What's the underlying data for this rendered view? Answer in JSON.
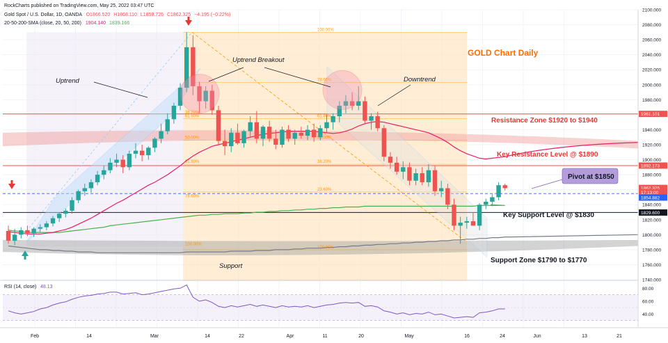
{
  "header": {
    "credit": "RockCharts published on TradingView.com, May 25, 2022 03:47 UTC",
    "symbol": "Gold Spot / U.S. Dollar, 1D, OANDA",
    "ohlc": {
      "o": "O1866.520",
      "h": "H1868.110",
      "l": "L1859.726",
      "c": "C1862.325",
      "chg": "−4.195 (−0.22%)"
    },
    "ma_label": "20-50-200-SMA (close, 20, 50, 200)",
    "ma_values": [
      "1904.140",
      "1839.166"
    ]
  },
  "colors": {
    "up": "#26a69a",
    "down": "#ef5350",
    "ma_fast": "#e91e63",
    "ma_slow": "#4caf50",
    "ma_long": "#787b86",
    "fib": "#ff9800",
    "channel": "#90caf9"
  },
  "chart_data": [
    {
      "type": "candlestick",
      "title": "GOLD Chart Daily",
      "ylim": [
        1740,
        2100
      ],
      "y_ticks": [
        "2100.000",
        "2080.000",
        "2060.000",
        "2040.000",
        "2020.000",
        "2000.000",
        "1980.000",
        "1960.000",
        "1940.000",
        "1920.000",
        "1900.000",
        "1880.000",
        "1860.000",
        "1840.000",
        "1820.000",
        "1800.000",
        "1780.000",
        "1760.000",
        "1740.000"
      ],
      "x_ticks": [
        "Feb",
        "14",
        "Mar",
        "14",
        "22",
        "Apr",
        "11",
        "20",
        "May",
        "16",
        "24",
        "Jun",
        "13",
        "21"
      ],
      "candles": [
        {
          "o": 1805,
          "h": 1812,
          "l": 1788,
          "c": 1792
        },
        {
          "o": 1792,
          "h": 1808,
          "l": 1786,
          "c": 1800
        },
        {
          "o": 1800,
          "h": 1810,
          "l": 1795,
          "c": 1806
        },
        {
          "o": 1806,
          "h": 1812,
          "l": 1798,
          "c": 1802
        },
        {
          "o": 1802,
          "h": 1810,
          "l": 1797,
          "c": 1808
        },
        {
          "o": 1808,
          "h": 1814,
          "l": 1803,
          "c": 1810
        },
        {
          "o": 1810,
          "h": 1818,
          "l": 1806,
          "c": 1815
        },
        {
          "o": 1815,
          "h": 1825,
          "l": 1811,
          "c": 1822
        },
        {
          "o": 1822,
          "h": 1830,
          "l": 1817,
          "c": 1828
        },
        {
          "o": 1828,
          "h": 1835,
          "l": 1823,
          "c": 1832
        },
        {
          "o": 1832,
          "h": 1850,
          "l": 1828,
          "c": 1846
        },
        {
          "o": 1846,
          "h": 1860,
          "l": 1842,
          "c": 1858
        },
        {
          "o": 1858,
          "h": 1868,
          "l": 1852,
          "c": 1862
        },
        {
          "o": 1862,
          "h": 1874,
          "l": 1856,
          "c": 1870
        },
        {
          "o": 1870,
          "h": 1885,
          "l": 1866,
          "c": 1880
        },
        {
          "o": 1880,
          "h": 1892,
          "l": 1874,
          "c": 1886
        },
        {
          "o": 1886,
          "h": 1902,
          "l": 1882,
          "c": 1896
        },
        {
          "o": 1896,
          "h": 1908,
          "l": 1890,
          "c": 1900
        },
        {
          "o": 1900,
          "h": 1906,
          "l": 1882,
          "c": 1890
        },
        {
          "o": 1890,
          "h": 1912,
          "l": 1886,
          "c": 1908
        },
        {
          "o": 1908,
          "h": 1922,
          "l": 1902,
          "c": 1912
        },
        {
          "o": 1912,
          "h": 1920,
          "l": 1898,
          "c": 1906
        },
        {
          "o": 1906,
          "h": 1918,
          "l": 1900,
          "c": 1916
        },
        {
          "o": 1916,
          "h": 1930,
          "l": 1910,
          "c": 1928
        },
        {
          "o": 1928,
          "h": 1948,
          "l": 1922,
          "c": 1938
        },
        {
          "o": 1938,
          "h": 1962,
          "l": 1934,
          "c": 1954
        },
        {
          "o": 1954,
          "h": 1976,
          "l": 1948,
          "c": 1972
        },
        {
          "o": 1972,
          "h": 2002,
          "l": 1966,
          "c": 1996
        },
        {
          "o": 1996,
          "h": 2070,
          "l": 1990,
          "c": 2050
        },
        {
          "o": 2050,
          "h": 2066,
          "l": 1986,
          "c": 1998
        },
        {
          "o": 1998,
          "h": 2004,
          "l": 1962,
          "c": 1978
        },
        {
          "o": 1978,
          "h": 1998,
          "l": 1968,
          "c": 1992
        },
        {
          "o": 1992,
          "h": 2000,
          "l": 1960,
          "c": 1966
        },
        {
          "o": 1966,
          "h": 1972,
          "l": 1920,
          "c": 1925
        },
        {
          "o": 1925,
          "h": 1940,
          "l": 1906,
          "c": 1918
        },
        {
          "o": 1918,
          "h": 1942,
          "l": 1910,
          "c": 1936
        },
        {
          "o": 1936,
          "h": 1948,
          "l": 1920,
          "c": 1922
        },
        {
          "o": 1922,
          "h": 1940,
          "l": 1916,
          "c": 1938
        },
        {
          "o": 1938,
          "h": 1958,
          "l": 1930,
          "c": 1950
        },
        {
          "o": 1950,
          "h": 1965,
          "l": 1922,
          "c": 1928
        },
        {
          "o": 1928,
          "h": 1946,
          "l": 1918,
          "c": 1944
        },
        {
          "o": 1944,
          "h": 1952,
          "l": 1924,
          "c": 1928
        },
        {
          "o": 1928,
          "h": 1940,
          "l": 1914,
          "c": 1920
        },
        {
          "o": 1920,
          "h": 1944,
          "l": 1916,
          "c": 1940
        },
        {
          "o": 1940,
          "h": 1946,
          "l": 1924,
          "c": 1928
        },
        {
          "o": 1928,
          "h": 1940,
          "l": 1920,
          "c": 1936
        },
        {
          "o": 1936,
          "h": 1944,
          "l": 1928,
          "c": 1932
        },
        {
          "o": 1932,
          "h": 1946,
          "l": 1926,
          "c": 1940
        },
        {
          "o": 1940,
          "h": 1948,
          "l": 1924,
          "c": 1930
        },
        {
          "o": 1930,
          "h": 1946,
          "l": 1926,
          "c": 1942
        },
        {
          "o": 1942,
          "h": 1960,
          "l": 1936,
          "c": 1950
        },
        {
          "o": 1950,
          "h": 1962,
          "l": 1940,
          "c": 1958
        },
        {
          "o": 1958,
          "h": 1978,
          "l": 1950,
          "c": 1972
        },
        {
          "o": 1972,
          "h": 1986,
          "l": 1962,
          "c": 1978
        },
        {
          "o": 1978,
          "h": 1990,
          "l": 1966,
          "c": 1972
        },
        {
          "o": 1972,
          "h": 1998,
          "l": 1966,
          "c": 1978
        },
        {
          "o": 1978,
          "h": 1984,
          "l": 1948,
          "c": 1952
        },
        {
          "o": 1952,
          "h": 1962,
          "l": 1940,
          "c": 1958
        },
        {
          "o": 1958,
          "h": 1964,
          "l": 1938,
          "c": 1942
        },
        {
          "o": 1942,
          "h": 1946,
          "l": 1898,
          "c": 1904
        },
        {
          "o": 1904,
          "h": 1910,
          "l": 1888,
          "c": 1896
        },
        {
          "o": 1896,
          "h": 1904,
          "l": 1880,
          "c": 1884
        },
        {
          "o": 1884,
          "h": 1898,
          "l": 1874,
          "c": 1890
        },
        {
          "o": 1890,
          "h": 1896,
          "l": 1866,
          "c": 1872
        },
        {
          "o": 1872,
          "h": 1888,
          "l": 1866,
          "c": 1882
        },
        {
          "o": 1882,
          "h": 1890,
          "l": 1866,
          "c": 1870
        },
        {
          "o": 1870,
          "h": 1894,
          "l": 1864,
          "c": 1886
        },
        {
          "o": 1886,
          "h": 1892,
          "l": 1852,
          "c": 1858
        },
        {
          "o": 1858,
          "h": 1872,
          "l": 1850,
          "c": 1862
        },
        {
          "o": 1862,
          "h": 1868,
          "l": 1834,
          "c": 1840
        },
        {
          "o": 1840,
          "h": 1848,
          "l": 1806,
          "c": 1812
        },
        {
          "o": 1812,
          "h": 1824,
          "l": 1788,
          "c": 1816
        },
        {
          "o": 1816,
          "h": 1824,
          "l": 1808,
          "c": 1818
        },
        {
          "o": 1818,
          "h": 1830,
          "l": 1814,
          "c": 1812
        },
        {
          "o": 1812,
          "h": 1842,
          "l": 1806,
          "c": 1840
        },
        {
          "o": 1840,
          "h": 1848,
          "l": 1834,
          "c": 1844
        },
        {
          "o": 1844,
          "h": 1854,
          "l": 1838,
          "c": 1850
        },
        {
          "o": 1850,
          "h": 1870,
          "l": 1846,
          "c": 1866
        },
        {
          "o": 1866,
          "h": 1868,
          "l": 1859,
          "c": 1862
        }
      ],
      "sma20": [
        1804,
        1803,
        1802,
        1801,
        1801,
        1801,
        1802,
        1803,
        1805,
        1807,
        1810,
        1814,
        1818,
        1822,
        1827,
        1832,
        1837,
        1842,
        1846,
        1851,
        1856,
        1861,
        1866,
        1870,
        1875,
        1880,
        1886,
        1892,
        1899,
        1905,
        1910,
        1914,
        1918,
        1920,
        1922,
        1924,
        1926,
        1928,
        1930,
        1932,
        1934,
        1935,
        1936,
        1937,
        1938,
        1938,
        1938,
        1938,
        1938,
        1937,
        1936,
        1935,
        1936,
        1938,
        1941,
        1945,
        1948,
        1950,
        1951,
        1950,
        1948,
        1946,
        1944,
        1942,
        1940,
        1938,
        1936,
        1932,
        1928,
        1923,
        1917,
        1912,
        1908,
        1905,
        1902,
        1901,
        1902,
        1903,
        1904
      ],
      "sma50": [
        1806,
        1805,
        1804,
        1803,
        1803,
        1803,
        1803,
        1803,
        1803,
        1804,
        1805,
        1806,
        1807,
        1808,
        1809,
        1810,
        1812,
        1813,
        1814,
        1815,
        1816,
        1817,
        1818,
        1819,
        1820,
        1821,
        1822,
        1823,
        1824,
        1825,
        1826,
        1826,
        1827,
        1827,
        1828,
        1828,
        1828,
        1829,
        1829,
        1830,
        1830,
        1831,
        1831,
        1832,
        1832,
        1833,
        1833,
        1834,
        1834,
        1835,
        1835,
        1836,
        1836,
        1837,
        1837,
        1837,
        1838,
        1838,
        1838,
        1838,
        1838,
        1838,
        1838,
        1838,
        1838,
        1838,
        1838,
        1838,
        1838,
        1838,
        1838,
        1838,
        1838,
        1838,
        1839,
        1839,
        1839,
        1839,
        1839
      ],
      "sma200": [
        1785,
        1784,
        1783,
        1782,
        1781,
        1780,
        1780,
        1779,
        1779,
        1778,
        1778,
        1777,
        1777,
        1777,
        1776,
        1776,
        1776,
        1776,
        1776,
        1776,
        1776,
        1776,
        1776,
        1776,
        1776,
        1776,
        1776,
        1776,
        1777,
        1777,
        1777,
        1777,
        1777,
        1777,
        1777,
        1778,
        1778,
        1778,
        1778,
        1779,
        1779,
        1779,
        1780,
        1780,
        1780,
        1781,
        1781,
        1782,
        1782,
        1782,
        1783,
        1783,
        1784,
        1784,
        1785,
        1785,
        1786,
        1786,
        1787,
        1787,
        1788,
        1788,
        1789,
        1789,
        1790,
        1790,
        1791,
        1791,
        1792,
        1792,
        1793,
        1793,
        1794,
        1794,
        1795,
        1795,
        1796,
        1796,
        1797,
        1797
      ],
      "fib_levels": [
        {
          "label": "100.00%",
          "value": 2070
        },
        {
          "label": "78.60%",
          "value": 2003
        },
        {
          "label": "61.80%",
          "value": 1955
        },
        {
          "label": "50.00%",
          "value": 1926
        },
        {
          "label": "38.20%",
          "value": 1894
        },
        {
          "label": "23.60%",
          "value": 1857
        },
        {
          "label": "100.00%",
          "value": 1780
        }
      ],
      "left_fib": [
        {
          "label": "61.80%",
          "value": 1955
        },
        {
          "label": "38.20%",
          "value": 1960
        },
        {
          "label": "50.00%",
          "value": 1926
        },
        {
          "label": "61.80%",
          "value": 1894
        },
        {
          "label": "78.60%",
          "value": 1848
        },
        {
          "label": "100.00%",
          "value": 1784
        }
      ],
      "lines": {
        "resistance_1961": 1961.101,
        "resistance_1892": 1892.173,
        "support_1829": 1829.6,
        "pivot_1854": 1854.882
      },
      "zones": {
        "resistance": [
          1920,
          1940
        ],
        "support": [
          1790,
          1770
        ]
      },
      "price_tags": [
        {
          "label": "1961.101",
          "value": 1961.101,
          "bg": "#ef5350"
        },
        {
          "label": "1892.173",
          "value": 1892.173,
          "bg": "#ef5350"
        },
        {
          "label": "1862.325",
          "value": 1862.325,
          "bg": "#ef5350"
        },
        {
          "label": "17:13:00",
          "value": 1856.5,
          "bg": "#ef5350"
        },
        {
          "label": "1854.882",
          "value": 1849.5,
          "bg": "#2962ff"
        },
        {
          "label": "1829.600",
          "value": 1829.6,
          "bg": "#131722"
        }
      ],
      "annotations": {
        "uptrend": "Uptrend",
        "uptrend_breakout": "Uptrend Breakout",
        "downtrend": "Downtrend",
        "resistance_zone": "Resistance Zone $1920 to $1940",
        "key_resistance": "Key Resistance Level @ $1890",
        "pivot": "Pivot at $1850",
        "key_support": "Key Support Level @ $1830",
        "support_zone": "Support Zone $1790 to $1770",
        "support": "Support"
      },
      "grid": true
    },
    {
      "type": "line",
      "title": "RSI (14, close)",
      "last_value": "48.13",
      "ylim": [
        20,
        90
      ],
      "y_ticks": [
        "80.00",
        "60.00",
        "40.00"
      ],
      "band": [
        30,
        70
      ],
      "values": [
        45,
        42,
        40,
        42,
        44,
        48,
        50,
        54,
        57,
        59,
        63,
        66,
        68,
        69,
        71,
        72,
        74,
        74,
        71,
        72,
        73,
        70,
        71,
        73,
        75,
        77,
        79,
        80,
        85,
        66,
        60,
        62,
        58,
        52,
        50,
        53,
        51,
        53,
        55,
        52,
        54,
        52,
        50,
        53,
        51,
        52,
        51,
        53,
        50,
        52,
        54,
        55,
        57,
        58,
        57,
        58,
        52,
        53,
        51,
        45,
        43,
        40,
        42,
        39,
        41,
        40,
        43,
        39,
        40,
        37,
        34,
        35,
        36,
        35,
        42,
        43,
        45,
        48,
        48
      ]
    }
  ]
}
